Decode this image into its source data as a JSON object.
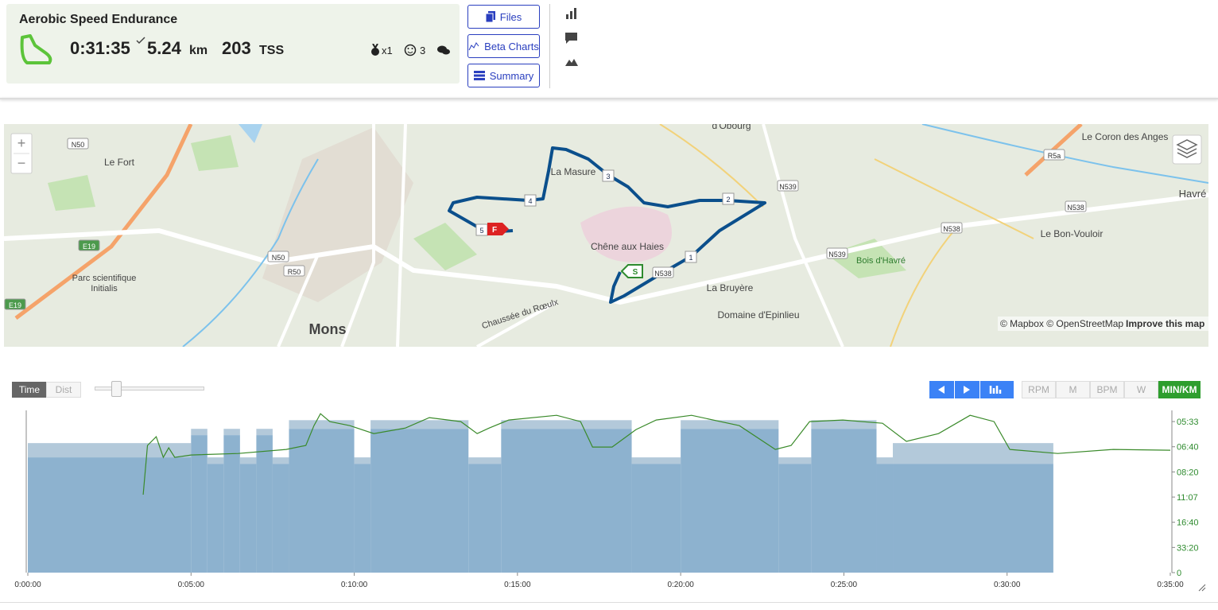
{
  "header": {
    "title": "Aerobic Speed Endurance",
    "duration": "0:31:35",
    "distance": "5.24",
    "distance_unit": "km",
    "tss": "203",
    "tss_unit": "TSS",
    "medals": "x1",
    "feel": "3"
  },
  "buttons": [
    "Files",
    "Beta Charts",
    "Summary"
  ],
  "map": {
    "places": [
      "d'Obourg",
      "Le Coron des Anges",
      "Havré",
      "Le Fort",
      "La Masure",
      "Chêne aux Haies",
      "Le Bon-Vouloir",
      "Bois d'Havré",
      "La Bruyère",
      "Domaine d'Epinlieu",
      "Parc scientifique",
      "Initialis",
      "Mons",
      "Chaussée du Rœulx"
    ],
    "roads": [
      "N50",
      "E19",
      "N50",
      "R50",
      "E19",
      "N539",
      "N538",
      "N538",
      "N539",
      "N538",
      "R5a"
    ],
    "markers": [
      "1",
      "2",
      "3",
      "4",
      "5"
    ],
    "start": "S",
    "finish": "F",
    "attribution": "© Mapbox © OpenStreetMap",
    "improve": "Improve this map",
    "zoom_in": "+",
    "zoom_out": "−"
  },
  "controls": {
    "modes": [
      "Time",
      "Dist"
    ],
    "units": [
      "RPM",
      "M",
      "BPM",
      "W",
      "MIN/KM"
    ]
  },
  "chart_data": {
    "type": "line",
    "color": "#3a8a2a",
    "x": [
      212,
      220,
      236,
      249,
      259,
      270,
      300,
      387,
      475,
      511,
      526,
      538,
      555,
      592,
      636,
      694,
      738,
      796,
      826,
      848,
      884,
      972,
      1016,
      1038,
      1074,
      1118,
      1155,
      1220,
      1308,
      1374,
      1403,
      1437,
      1498,
      1571,
      1615,
      1674,
      1732,
      1776,
      1805,
      1893,
      1995,
      2100
    ],
    "values": [
      5.57,
      9.09,
      9.72,
      8.24,
      8.92,
      8.24,
      8.41,
      8.52,
      8.81,
      9.09,
      10.51,
      11.36,
      10.8,
      10.51,
      9.94,
      10.34,
      11.08,
      10.8,
      9.94,
      10.34,
      10.91,
      11.25,
      10.8,
      8.98,
      8.98,
      10.23,
      10.91,
      11.25,
      10.51,
      8.81,
      9.09,
      10.8,
      10.91,
      10.68,
      9.38,
      9.94,
      11.25,
      10.8,
      8.81,
      8.52,
      8.81,
      8.75
    ],
    "steps": {
      "color": "#8db2cf",
      "band_color": "#b3c9da",
      "start": [
        0,
        300,
        330,
        360,
        390,
        420,
        450,
        480,
        600,
        630,
        810,
        870,
        1110,
        1200,
        1380,
        1440,
        1560,
        1590
      ],
      "end": [
        300,
        330,
        360,
        390,
        420,
        450,
        480,
        600,
        630,
        810,
        870,
        1110,
        1200,
        1380,
        1440,
        1560,
        1590,
        1885
      ],
      "low": [
        8.24,
        9.83,
        7.78,
        9.83,
        7.78,
        9.83,
        7.78,
        10.28,
        7.78,
        10.28,
        7.78,
        10.28,
        7.78,
        10.28,
        7.78,
        10.28,
        7.78,
        7.78
      ],
      "high": [
        9.26,
        10.28,
        8.24,
        10.28,
        8.24,
        10.28,
        8.24,
        10.9,
        8.24,
        10.9,
        8.24,
        10.9,
        8.24,
        10.9,
        8.24,
        10.9,
        8.24,
        9.26
      ]
    },
    "xlim": [
      0,
      2100
    ],
    "xticks": [
      {
        "value": 0,
        "label": "0:00:00"
      },
      {
        "value": 300,
        "label": "0:05:00"
      },
      {
        "value": 600,
        "label": "0:10:00"
      },
      {
        "value": 900,
        "label": "0:15:00"
      },
      {
        "value": 1200,
        "label": "0:20:00"
      },
      {
        "value": 1500,
        "label": "0:25:00"
      },
      {
        "value": 1800,
        "label": "0:30:00"
      },
      {
        "value": 2100,
        "label": "0:35:00"
      }
    ],
    "ylim": [
      0,
      11.6
    ],
    "yticks": [
      0,
      {
        "value": 1.8,
        "label": "33:20"
      },
      {
        "value": 3.6,
        "label": "16:40"
      },
      {
        "value": 5.4,
        "label": "11:07"
      },
      {
        "value": 7.2,
        "label": "08:20"
      },
      {
        "value": 9,
        "label": "06:40"
      },
      {
        "value": 10.8,
        "label": "05:33"
      }
    ]
  }
}
